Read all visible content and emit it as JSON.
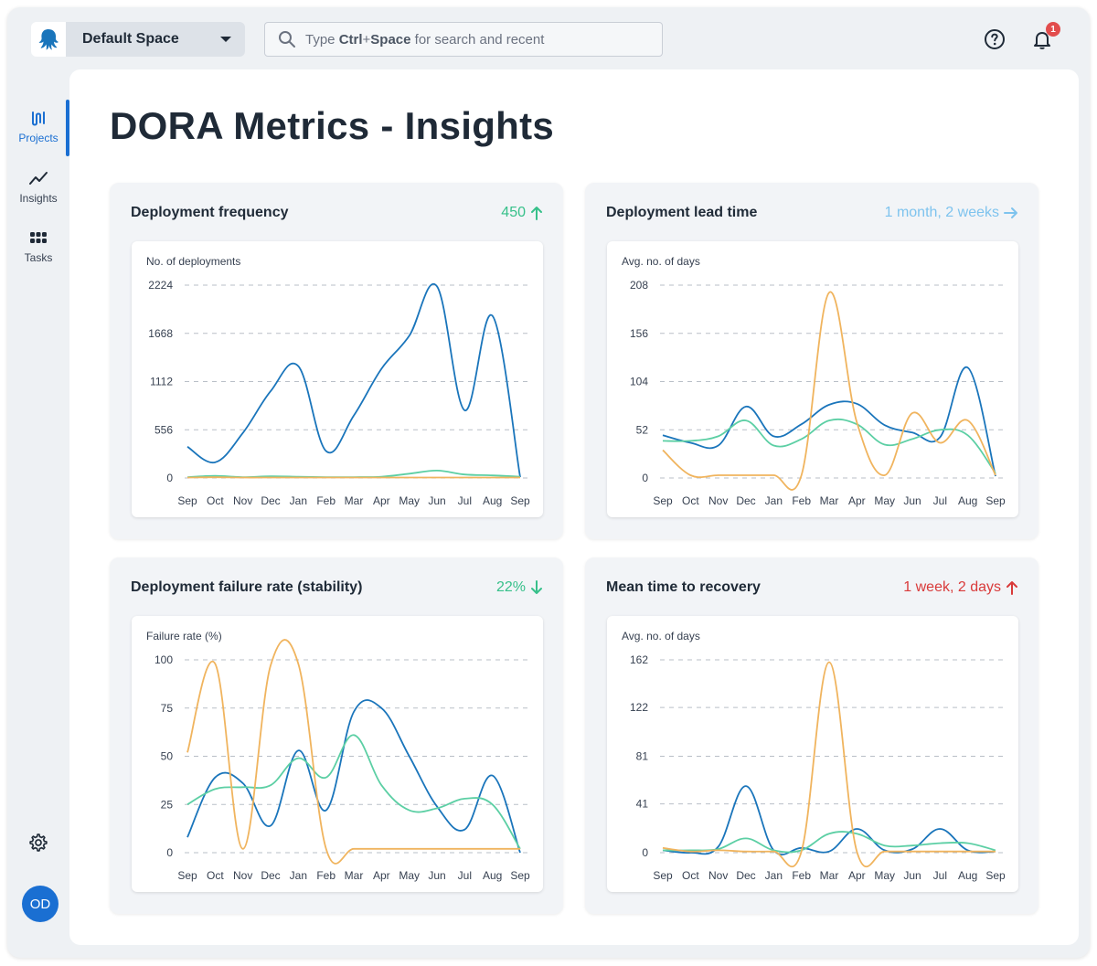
{
  "header": {
    "space": "Default Space",
    "search": {
      "prefix": "Type ",
      "key1": "Ctrl",
      "plus": "+",
      "key2": "Space",
      "suffix": " for search and recent"
    },
    "notification_count": "1"
  },
  "sidebar": {
    "items": [
      {
        "label": "Projects",
        "icon": "projects-icon",
        "active": true
      },
      {
        "label": "Insights",
        "icon": "insights-icon",
        "active": false
      },
      {
        "label": "Tasks",
        "icon": "tasks-icon",
        "active": false
      }
    ],
    "avatar": "OD"
  },
  "page": {
    "title": "DORA Metrics - Insights"
  },
  "colors": {
    "blue": "#1a75bb",
    "orange": "#f0b45e",
    "green": "#5ccfa4",
    "metric_green": "#37c08a",
    "metric_lightblue": "#7ec3ee",
    "metric_red": "#d93a3a",
    "accent": "#1a6fd2"
  },
  "cards": [
    {
      "title": "Deployment frequency",
      "metric": "450",
      "metric_color": "#37c08a",
      "metric_icon": "arrow-up-icon"
    },
    {
      "title": "Deployment lead time",
      "metric": "1 month, 2 weeks",
      "metric_color": "#7ec3ee",
      "metric_icon": "arrow-right-icon"
    },
    {
      "title": "Deployment failure rate (stability)",
      "metric": "22%",
      "metric_color": "#37c08a",
      "metric_icon": "arrow-down-icon"
    },
    {
      "title": "Mean time to recovery",
      "metric": "1 week, 2 days",
      "metric_color": "#d93a3a",
      "metric_icon": "arrow-up-icon"
    }
  ],
  "chart_data": [
    {
      "type": "line",
      "title": "Deployment frequency",
      "ylabel": "No. of deployments",
      "categories": [
        "Sep",
        "Oct",
        "Nov",
        "Dec",
        "Jan",
        "Feb",
        "Mar",
        "Apr",
        "May",
        "Jun",
        "Jul",
        "Aug",
        "Sep"
      ],
      "yticks": [
        0,
        556,
        1112,
        1668,
        2224
      ],
      "ylim": [
        0,
        2224
      ],
      "series": [
        {
          "name": "blue",
          "color": "#1a75bb",
          "values": [
            360,
            180,
            520,
            1000,
            1290,
            310,
            720,
            1260,
            1640,
            2210,
            780,
            1870,
            10
          ]
        },
        {
          "name": "green",
          "color": "#5ccfa4",
          "values": [
            10,
            25,
            10,
            20,
            15,
            10,
            10,
            15,
            50,
            85,
            40,
            30,
            15
          ]
        },
        {
          "name": "orange",
          "color": "#f0b45e",
          "values": [
            5,
            8,
            5,
            5,
            5,
            5,
            5,
            5,
            5,
            5,
            5,
            5,
            5
          ]
        }
      ]
    },
    {
      "type": "line",
      "title": "Deployment lead time",
      "ylabel": "Avg. no. of days",
      "categories": [
        "Sep",
        "Oct",
        "Nov",
        "Dec",
        "Jan",
        "Feb",
        "Mar",
        "Apr",
        "May",
        "Jun",
        "Jul",
        "Aug",
        "Sep"
      ],
      "yticks": [
        0,
        52,
        104,
        156,
        208
      ],
      "ylim": [
        0,
        208
      ],
      "series": [
        {
          "name": "blue",
          "color": "#1a75bb",
          "values": [
            46,
            38,
            35,
            77,
            45,
            58,
            79,
            80,
            57,
            49,
            44,
            119,
            2
          ]
        },
        {
          "name": "green",
          "color": "#5ccfa4",
          "values": [
            40,
            40,
            45,
            62,
            35,
            42,
            62,
            58,
            36,
            42,
            52,
            46,
            5
          ]
        },
        {
          "name": "orange",
          "color": "#f0b45e",
          "values": [
            30,
            3,
            3,
            3,
            3,
            3,
            200,
            60,
            3,
            70,
            38,
            62,
            3
          ]
        }
      ]
    },
    {
      "type": "line",
      "title": "Deployment failure rate (stability)",
      "ylabel": "Failure rate (%)",
      "categories": [
        "Sep",
        "Oct",
        "Nov",
        "Dec",
        "Jan",
        "Feb",
        "Mar",
        "Apr",
        "May",
        "Jun",
        "Jul",
        "Aug",
        "Sep"
      ],
      "yticks": [
        0,
        25,
        50,
        75,
        100
      ],
      "ylim": [
        0,
        100
      ],
      "series": [
        {
          "name": "blue",
          "color": "#1a75bb",
          "values": [
            8,
            39,
            36,
            14,
            53,
            22,
            73,
            75,
            50,
            24,
            12,
            40,
            0
          ]
        },
        {
          "name": "green",
          "color": "#5ccfa4",
          "values": [
            25,
            33,
            34,
            35,
            49,
            39,
            61,
            35,
            22,
            23,
            28,
            25,
            2
          ]
        },
        {
          "name": "orange",
          "color": "#f0b45e",
          "values": [
            52,
            98,
            2,
            97,
            98,
            2,
            2,
            2,
            2,
            2,
            2,
            2,
            2
          ]
        }
      ]
    },
    {
      "type": "line",
      "title": "Mean time to recovery",
      "ylabel": "Avg. no. of days",
      "categories": [
        "Sep",
        "Oct",
        "Nov",
        "Dec",
        "Jan",
        "Feb",
        "Mar",
        "Apr",
        "May",
        "Jun",
        "Jul",
        "Aug",
        "Sep"
      ],
      "yticks": [
        0,
        41,
        81,
        122,
        162
      ],
      "ylim": [
        0,
        162
      ],
      "series": [
        {
          "name": "blue",
          "color": "#1a75bb",
          "values": [
            2,
            0,
            5,
            56,
            2,
            4,
            1,
            20,
            2,
            3,
            20,
            2,
            1
          ]
        },
        {
          "name": "green",
          "color": "#5ccfa4",
          "values": [
            2,
            2,
            3,
            12,
            2,
            2,
            16,
            16,
            6,
            6,
            8,
            8,
            2
          ]
        },
        {
          "name": "orange",
          "color": "#f0b45e",
          "values": [
            4,
            1,
            2,
            1,
            1,
            1,
            160,
            1,
            1,
            1,
            1,
            1,
            1
          ]
        }
      ]
    }
  ]
}
